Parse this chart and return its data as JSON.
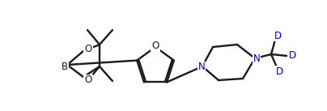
{
  "background_color": "#ffffff",
  "line_color": "#1a1a1a",
  "label_color_N": "#0000cd",
  "label_color_D": "#0000cd",
  "line_width": 1.7,
  "figsize": [
    4.04,
    1.37
  ],
  "dpi": 100,
  "xlim": [
    0,
    404
  ],
  "ylim": [
    0,
    137
  ]
}
